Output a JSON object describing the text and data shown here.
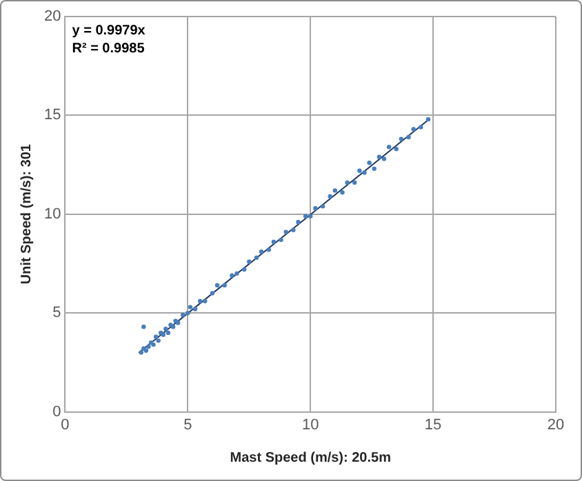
{
  "chart_data": {
    "type": "scatter",
    "xlabel": "Mast Speed (m/s): 20.5m",
    "ylabel": "Unit Speed (m/s): 301",
    "xlim": [
      0,
      20
    ],
    "xticks": [
      0,
      5,
      10,
      15,
      20
    ],
    "ylim": [
      0,
      20
    ],
    "yticks": [
      0,
      5,
      10,
      15,
      20
    ],
    "grid": true,
    "legend": false,
    "annotations": [
      "y = 0.9979x",
      "R² = 0.9985"
    ],
    "series": [
      {
        "color": "#4a7ebb",
        "marker": "circle",
        "x": [
          3.1,
          3.2,
          3.2,
          3.3,
          3.4,
          3.5,
          3.6,
          3.7,
          3.8,
          3.9,
          4.0,
          4.1,
          4.2,
          4.3,
          4.4,
          4.5,
          4.6,
          4.8,
          5.0,
          5.1,
          5.3,
          5.5,
          5.7,
          6.0,
          6.2,
          6.5,
          6.8,
          7.0,
          7.3,
          7.5,
          7.8,
          8.0,
          8.3,
          8.5,
          8.8,
          9.0,
          9.3,
          9.5,
          9.8,
          10.0,
          10.2,
          10.5,
          10.8,
          11.0,
          11.3,
          11.5,
          11.8,
          12.0,
          12.2,
          12.4,
          12.6,
          12.8,
          13.0,
          13.2,
          13.5,
          13.7,
          14.0,
          14.2,
          14.5,
          14.8
        ],
        "values": [
          3.0,
          3.2,
          4.3,
          3.1,
          3.3,
          3.5,
          3.4,
          3.8,
          3.6,
          4.0,
          3.9,
          4.2,
          4.0,
          4.4,
          4.3,
          4.6,
          4.5,
          4.9,
          5.0,
          5.3,
          5.2,
          5.6,
          5.6,
          6.0,
          6.4,
          6.4,
          6.9,
          7.0,
          7.2,
          7.6,
          7.8,
          8.1,
          8.2,
          8.6,
          8.7,
          9.1,
          9.2,
          9.6,
          9.9,
          9.9,
          10.3,
          10.4,
          10.9,
          11.2,
          11.1,
          11.6,
          11.6,
          12.2,
          12.1,
          12.6,
          12.3,
          12.9,
          12.8,
          13.4,
          13.3,
          13.8,
          13.9,
          14.3,
          14.4,
          14.8
        ]
      },
      {
        "type": "line",
        "marker": "none",
        "color": "#1f3864",
        "x": [
          3.0,
          14.8
        ],
        "values": [
          2.99,
          14.77
        ]
      }
    ]
  }
}
